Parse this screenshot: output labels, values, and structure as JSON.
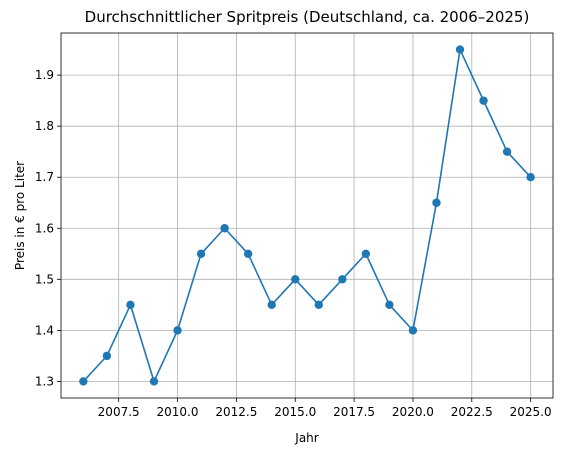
{
  "chart_data": {
    "type": "line",
    "title": "Durchschnittlicher Spritpreis (Deutschland, ca. 2006–2025)",
    "xlabel": "Jahr",
    "ylabel": "Preis in € pro Liter",
    "x": [
      2006,
      2007,
      2008,
      2009,
      2010,
      2011,
      2012,
      2013,
      2014,
      2015,
      2016,
      2017,
      2018,
      2019,
      2020,
      2021,
      2022,
      2023,
      2024,
      2025
    ],
    "series": [
      {
        "values": [
          1.3,
          1.35,
          1.45,
          1.3,
          1.4,
          1.55,
          1.6,
          1.55,
          1.45,
          1.5,
          1.45,
          1.5,
          1.55,
          1.45,
          1.4,
          1.65,
          1.95,
          1.85,
          1.75,
          1.7
        ],
        "color": "#1f77b4",
        "marker": "circle"
      }
    ],
    "xlim": [
      2005.05,
      2025.95
    ],
    "ylim": [
      1.2675,
      1.9825
    ],
    "x_ticks": [
      "2007.5",
      "2010.0",
      "2012.5",
      "2015.0",
      "2017.5",
      "2020.0",
      "2022.5",
      "2025.0"
    ],
    "y_ticks": [
      "1.3",
      "1.4",
      "1.5",
      "1.6",
      "1.7",
      "1.8",
      "1.9"
    ],
    "grid": true
  }
}
